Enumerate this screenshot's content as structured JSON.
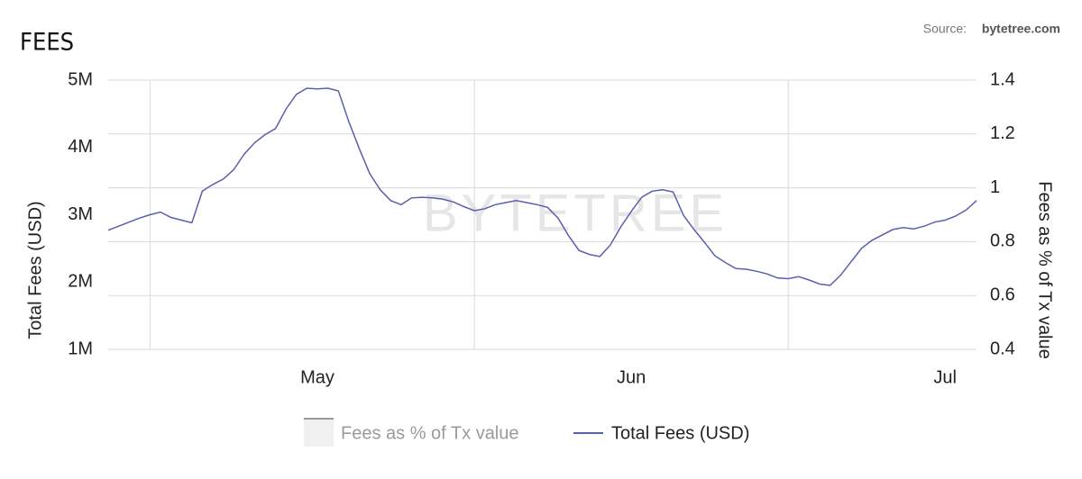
{
  "chart_data": {
    "type": "line",
    "title": "FEES",
    "source_label": "Source:",
    "source": "bytetree.com",
    "watermark": "BYTETREE",
    "y_label": "Total Fees (USD)",
    "y2_label": "Fees as % of Tx value",
    "x": [
      0,
      1,
      2,
      3,
      4,
      5,
      6,
      7,
      8,
      9,
      10,
      11,
      12,
      13,
      14,
      15,
      16,
      17,
      18,
      19,
      20,
      21,
      22,
      23,
      24,
      25,
      26,
      27,
      28,
      29,
      30,
      31,
      32,
      33,
      34,
      35,
      36,
      37,
      38,
      39,
      40,
      41,
      42,
      43,
      44,
      45,
      46,
      47,
      48,
      49,
      50,
      51,
      52,
      53,
      54,
      55,
      56,
      57,
      58,
      59,
      60,
      61,
      62,
      63,
      64,
      65,
      66,
      67,
      68,
      69,
      70,
      71,
      72,
      73,
      74,
      75,
      76,
      77,
      78,
      79,
      80,
      81,
      82,
      83
    ],
    "xlim": [
      0,
      83
    ],
    "xticks": [
      {
        "value": 20,
        "label": "May"
      },
      {
        "value": 50,
        "label": "Jun"
      },
      {
        "value": 80,
        "label": "Jul"
      }
    ],
    "xgrid": [
      4,
      35,
      65
    ],
    "ylim": [
      1000000,
      5000000
    ],
    "yticks": [
      {
        "value": 1000000,
        "label": "1M"
      },
      {
        "value": 2000000,
        "label": "2M"
      },
      {
        "value": 3000000,
        "label": "3M"
      },
      {
        "value": 4000000,
        "label": "4M"
      },
      {
        "value": 5000000,
        "label": "5M"
      }
    ],
    "y2lim": [
      0.4,
      1.4
    ],
    "y2ticks": [
      0.4,
      0.6,
      0.8,
      1,
      1.2,
      1.4
    ],
    "grid": true,
    "legend": "bottom",
    "series": [
      {
        "name": "Fees as % of Tx value",
        "color": "#999999",
        "axis": "y2",
        "visible": false
      },
      {
        "name": "Total Fees (USD)",
        "color": "#5a5fae",
        "visible": true,
        "values": [
          2770000,
          2830000,
          2890000,
          2950000,
          3000000,
          3040000,
          2960000,
          2920000,
          2880000,
          3350000,
          3450000,
          3530000,
          3670000,
          3900000,
          4070000,
          4190000,
          4280000,
          4570000,
          4790000,
          4880000,
          4870000,
          4880000,
          4840000,
          4380000,
          3980000,
          3610000,
          3370000,
          3210000,
          3150000,
          3250000,
          3260000,
          3250000,
          3230000,
          3190000,
          3120000,
          3060000,
          3090000,
          3150000,
          3180000,
          3210000,
          3180000,
          3150000,
          3110000,
          2950000,
          2690000,
          2470000,
          2410000,
          2380000,
          2550000,
          2820000,
          3050000,
          3260000,
          3350000,
          3370000,
          3340000,
          2990000,
          2780000,
          2590000,
          2390000,
          2290000,
          2200000,
          2190000,
          2160000,
          2120000,
          2060000,
          2050000,
          2080000,
          2030000,
          1970000,
          1950000,
          2100000,
          2300000,
          2500000,
          2620000,
          2700000,
          2780000,
          2810000,
          2790000,
          2830000,
          2890000,
          2920000,
          2980000,
          3070000,
          3210000
        ]
      }
    ]
  }
}
